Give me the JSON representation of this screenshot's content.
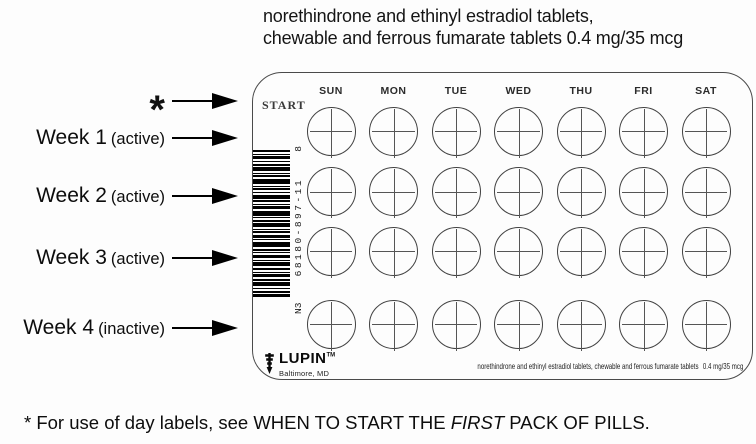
{
  "title": {
    "line1": "norethindrone and ethinyl estradiol tablets,",
    "line2": "chewable and ferrous fumarate tablets 0.4 mg/35 mcg"
  },
  "callouts": {
    "asterisk": "*",
    "week1": {
      "name": "Week 1",
      "status": "(active)"
    },
    "week2": {
      "name": "Week 2",
      "status": "(active)"
    },
    "week3": {
      "name": "Week 3",
      "status": "(active)"
    },
    "week4": {
      "name": "Week 4",
      "status": "(inactive)"
    }
  },
  "pack": {
    "start_label": "START",
    "days": [
      "SUN",
      "MON",
      "TUE",
      "WED",
      "THU",
      "FRI",
      "SAT"
    ],
    "weeks": [
      {
        "label": "Week 1",
        "active": true
      },
      {
        "label": "Week 2",
        "active": true
      },
      {
        "label": "Week 3",
        "active": true
      },
      {
        "label": "Week 4",
        "active": false
      }
    ],
    "barcode": {
      "top_code": "8",
      "ndc": "68180-897-11",
      "bottom_code": "N3",
      "bars": [
        [
          2,
          2
        ],
        [
          1,
          1
        ],
        [
          3,
          2
        ],
        [
          1,
          2
        ],
        [
          2,
          1
        ],
        [
          4,
          2
        ],
        [
          1,
          1
        ],
        [
          2,
          2
        ],
        [
          5,
          2
        ],
        [
          1,
          1
        ],
        [
          2,
          2
        ],
        [
          1,
          2
        ],
        [
          4,
          1
        ],
        [
          2,
          2
        ],
        [
          1,
          1
        ],
        [
          3,
          2
        ],
        [
          5,
          1
        ],
        [
          1,
          2
        ],
        [
          2,
          1
        ],
        [
          4,
          2
        ],
        [
          1,
          1
        ],
        [
          2,
          2
        ],
        [
          3,
          1
        ],
        [
          1,
          2
        ],
        [
          5,
          2
        ],
        [
          2,
          1
        ],
        [
          1,
          2
        ],
        [
          3,
          2
        ],
        [
          1,
          1
        ],
        [
          4,
          2
        ],
        [
          2,
          2
        ],
        [
          1,
          1
        ],
        [
          3,
          2
        ],
        [
          2,
          1
        ],
        [
          4,
          2
        ],
        [
          1,
          2
        ],
        [
          2,
          1
        ],
        [
          3,
          0
        ]
      ]
    },
    "logo": {
      "brand": "LUPIN",
      "tm": "TM",
      "city": "Baltimore, MD"
    },
    "product_line": {
      "name": "norethindrone and ethinyl estradiol tablets, chewable and ferrous fumarate tablets",
      "dose": "0.4 mg/35 mcg"
    }
  },
  "footer": {
    "pre": "* For use of day labels, see WHEN TO START THE ",
    "em": "FIRST",
    "post": " PACK OF PILLS."
  },
  "colors": {
    "ink": "#111111",
    "outline": "#4a4a4a",
    "barcode": "#000000",
    "background": "#fdfdfd"
  }
}
